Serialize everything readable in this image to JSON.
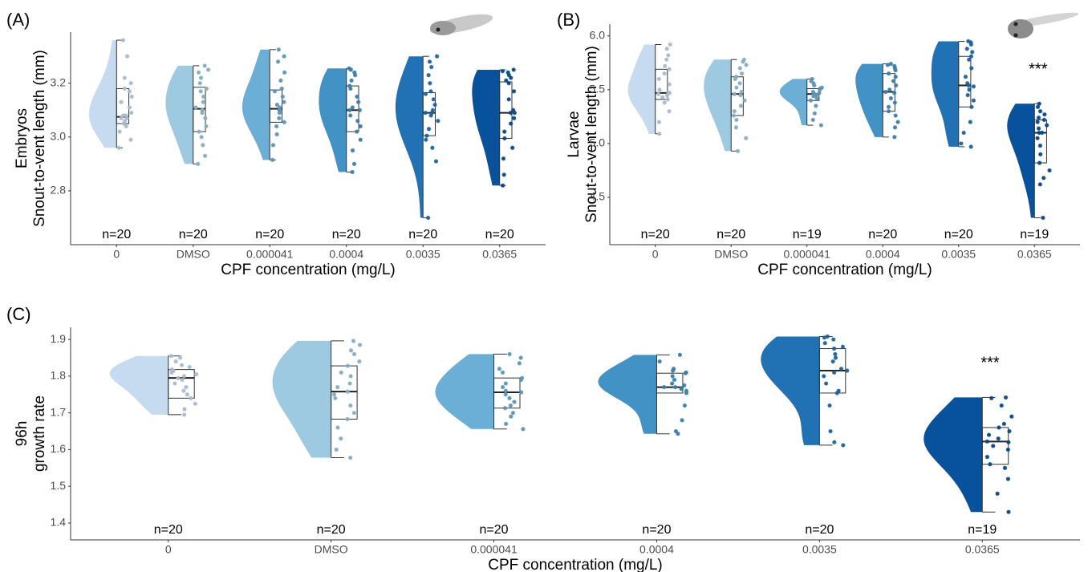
{
  "chart_data": [
    {
      "type": "raincloud",
      "label": "(A)",
      "ylabel": [
        "Embryos",
        "Snout-to-vent length (mm)"
      ],
      "xlabel": "CPF concentration (mg/L)",
      "categories": [
        "0",
        "DMSO",
        "0.000041",
        "0.0004",
        "0.0035",
        "0.0365"
      ],
      "n_labels": [
        "n=20",
        "n=20",
        "n=20",
        "n=20",
        "n=20",
        "n=20"
      ],
      "colors": [
        "#c6dbef",
        "#9ecae1",
        "#6baed6",
        "#4292c6",
        "#2171b5",
        "#08519c"
      ],
      "ylim": [
        2.6,
        3.39
      ],
      "yticks": [
        2.8,
        {
          "value": 3,
          "label": "3.0"
        },
        3.2
      ],
      "boxes": [
        [
          2.96,
          3.05,
          3.075,
          3.18,
          3.36
        ],
        [
          2.9,
          3.02,
          3.105,
          3.185,
          3.265
        ],
        [
          2.915,
          3.055,
          3.105,
          3.175,
          3.325
        ],
        [
          2.87,
          3.02,
          3.1,
          3.19,
          3.255
        ],
        [
          2.7,
          3.005,
          3.09,
          3.165,
          3.3
        ],
        [
          2.82,
          2.995,
          3.09,
          3.205,
          3.25
        ]
      ],
      "points": [
        [
          2.96,
          2.99,
          3.02,
          3.04,
          3.05,
          3.06,
          3.07,
          3.07,
          3.08,
          3.08,
          3.09,
          3.11,
          3.13,
          3.15,
          3.17,
          3.18,
          3.2,
          3.22,
          3.3,
          3.36
        ],
        [
          2.9,
          2.93,
          2.97,
          3.0,
          3.02,
          3.04,
          3.07,
          3.09,
          3.1,
          3.1,
          3.11,
          3.13,
          3.15,
          3.17,
          3.18,
          3.2,
          3.22,
          3.24,
          3.25,
          3.265
        ],
        [
          2.915,
          2.97,
          3.01,
          3.04,
          3.055,
          3.07,
          3.09,
          3.1,
          3.1,
          3.11,
          3.12,
          3.13,
          3.15,
          3.17,
          3.18,
          3.21,
          3.24,
          3.28,
          3.3,
          3.325
        ],
        [
          2.87,
          2.9,
          2.95,
          2.99,
          3.02,
          3.04,
          3.06,
          3.08,
          3.1,
          3.1,
          3.11,
          3.13,
          3.15,
          3.18,
          3.19,
          3.21,
          3.23,
          3.24,
          3.25,
          3.255
        ],
        [
          2.7,
          2.91,
          2.96,
          2.99,
          3.005,
          3.03,
          3.06,
          3.08,
          3.09,
          3.09,
          3.1,
          3.12,
          3.14,
          3.16,
          3.17,
          3.2,
          3.23,
          3.26,
          3.28,
          3.3
        ],
        [
          2.82,
          2.86,
          2.92,
          2.96,
          2.995,
          3.02,
          3.05,
          3.07,
          3.09,
          3.09,
          3.1,
          3.14,
          3.17,
          3.2,
          3.21,
          3.22,
          3.23,
          3.24,
          3.245,
          3.25
        ]
      ],
      "annotations": []
    },
    {
      "type": "raincloud",
      "label": "(B)",
      "ylabel": [
        "Larvae",
        "Snout-to-vent length (mm)"
      ],
      "xlabel": "CPF concentration (mg/L)",
      "categories": [
        "0",
        "DMSO",
        "0.000041",
        "0.0004",
        "0.0035",
        "0.0365"
      ],
      "n_labels": [
        "n=20",
        "n=20",
        "n=19",
        "n=20",
        "n=20",
        "n=19"
      ],
      "colors": [
        "#c6dbef",
        "#9ecae1",
        "#6baed6",
        "#4292c6",
        "#2171b5",
        "#08519c"
      ],
      "ylim": [
        4.06,
        6.11
      ],
      "yticks": [
        4.5,
        {
          "value": 5,
          "label": "5.0"
        },
        5.5,
        {
          "value": 6,
          "label": "6.0"
        }
      ],
      "boxes": [
        [
          5.09,
          5.41,
          5.47,
          5.69,
          5.92
        ],
        [
          4.93,
          5.26,
          5.46,
          5.62,
          5.78
        ],
        [
          5.17,
          5.4,
          5.46,
          5.51,
          5.6
        ],
        [
          5.06,
          5.3,
          5.48,
          5.65,
          5.74
        ],
        [
          4.97,
          5.34,
          5.54,
          5.81,
          5.95
        ],
        [
          4.31,
          4.82,
          5.1,
          5.22,
          5.37
        ]
      ],
      "points": [
        [
          5.09,
          5.2,
          5.3,
          5.38,
          5.41,
          5.43,
          5.45,
          5.46,
          5.47,
          5.47,
          5.5,
          5.55,
          5.6,
          5.65,
          5.69,
          5.72,
          5.78,
          5.82,
          5.88,
          5.92
        ],
        [
          4.93,
          5.05,
          5.15,
          5.22,
          5.26,
          5.3,
          5.35,
          5.4,
          5.45,
          5.46,
          5.48,
          5.52,
          5.56,
          5.6,
          5.62,
          5.65,
          5.7,
          5.73,
          5.76,
          5.78
        ],
        [
          5.17,
          5.22,
          5.28,
          5.35,
          5.4,
          5.42,
          5.44,
          5.45,
          5.46,
          5.46,
          5.47,
          5.48,
          5.5,
          5.51,
          5.52,
          5.54,
          5.56,
          5.58,
          5.6
        ],
        [
          5.06,
          5.15,
          5.2,
          5.26,
          5.3,
          5.34,
          5.38,
          5.42,
          5.47,
          5.48,
          5.5,
          5.54,
          5.58,
          5.62,
          5.65,
          5.68,
          5.7,
          5.72,
          5.73,
          5.74
        ],
        [
          4.97,
          5.0,
          5.1,
          5.2,
          5.34,
          5.4,
          5.45,
          5.5,
          5.53,
          5.54,
          5.56,
          5.62,
          5.7,
          5.78,
          5.81,
          5.85,
          5.88,
          5.92,
          5.94,
          5.95
        ],
        [
          4.31,
          4.62,
          4.68,
          4.75,
          4.82,
          4.9,
          4.98,
          5.05,
          5.1,
          5.1,
          5.14,
          5.17,
          5.2,
          5.22,
          5.24,
          5.27,
          5.3,
          5.34,
          5.37
        ]
      ],
      "annotations": [
        {
          "category": "0.0365",
          "text": "***"
        }
      ]
    },
    {
      "type": "raincloud",
      "label": "(C)",
      "ylabel": [
        "96h",
        "growth rate"
      ],
      "xlabel": "CPF concentration (mg/L)",
      "categories": [
        "0",
        "DMSO",
        "0.000041",
        "0.0004",
        "0.0035",
        "0.0365"
      ],
      "n_labels": [
        "n=20",
        "n=20",
        "n=20",
        "n=20",
        "n=20",
        "n=19"
      ],
      "colors": [
        "#c6dbef",
        "#9ecae1",
        "#6baed6",
        "#4292c6",
        "#2171b5",
        "#08519c"
      ],
      "ylim": [
        1.354,
        1.933
      ],
      "yticks": [
        1.4,
        1.5,
        1.6,
        1.7,
        1.8,
        1.9
      ],
      "boxes": [
        [
          1.695,
          1.74,
          1.795,
          1.818,
          1.855
        ],
        [
          1.578,
          1.683,
          1.758,
          1.828,
          1.896
        ],
        [
          1.656,
          1.713,
          1.756,
          1.795,
          1.86
        ],
        [
          1.643,
          1.754,
          1.77,
          1.808,
          1.858
        ],
        [
          1.612,
          1.754,
          1.815,
          1.875,
          1.908
        ],
        [
          1.43,
          1.56,
          1.622,
          1.66,
          1.742
        ]
      ],
      "points": [
        [
          1.695,
          1.71,
          1.725,
          1.74,
          1.75,
          1.76,
          1.77,
          1.78,
          1.79,
          1.795,
          1.8,
          1.805,
          1.81,
          1.815,
          1.818,
          1.825,
          1.83,
          1.84,
          1.85,
          1.855
        ],
        [
          1.578,
          1.6,
          1.63,
          1.66,
          1.683,
          1.7,
          1.72,
          1.74,
          1.75,
          1.758,
          1.77,
          1.78,
          1.8,
          1.81,
          1.828,
          1.84,
          1.86,
          1.87,
          1.885,
          1.896
        ],
        [
          1.656,
          1.67,
          1.69,
          1.7,
          1.713,
          1.72,
          1.73,
          1.74,
          1.75,
          1.756,
          1.76,
          1.77,
          1.78,
          1.79,
          1.795,
          1.81,
          1.82,
          1.835,
          1.85,
          1.86
        ],
        [
          1.643,
          1.65,
          1.68,
          1.72,
          1.754,
          1.76,
          1.765,
          1.768,
          1.77,
          1.77,
          1.775,
          1.78,
          1.79,
          1.8,
          1.808,
          1.81,
          1.815,
          1.82,
          1.84,
          1.858
        ],
        [
          1.612,
          1.62,
          1.65,
          1.72,
          1.754,
          1.76,
          1.78,
          1.8,
          1.81,
          1.815,
          1.82,
          1.84,
          1.85,
          1.86,
          1.875,
          1.88,
          1.89,
          1.9,
          1.905,
          1.908
        ],
        [
          1.43,
          1.48,
          1.52,
          1.55,
          1.56,
          1.58,
          1.6,
          1.61,
          1.62,
          1.622,
          1.63,
          1.64,
          1.65,
          1.66,
          1.67,
          1.69,
          1.72,
          1.74,
          1.742
        ]
      ],
      "annotations": [
        {
          "category": "0.0365",
          "text": "***"
        }
      ]
    }
  ]
}
